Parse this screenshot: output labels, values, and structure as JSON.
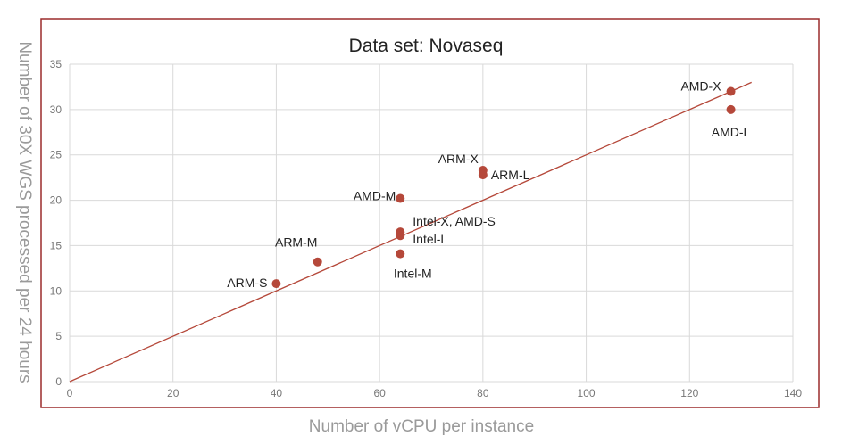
{
  "chart_data": {
    "type": "scatter",
    "title": "Data set: Novaseq",
    "xlabel": "Number of vCPU per instance",
    "ylabel": "Number of 30X WGS processed per 24 hours",
    "xlim": [
      0,
      140
    ],
    "ylim": [
      0,
      35
    ],
    "xticks": [
      0,
      20,
      40,
      60,
      80,
      100,
      120,
      140
    ],
    "yticks": [
      0,
      5,
      10,
      15,
      20,
      25,
      30,
      35
    ],
    "grid": true,
    "legend": "none",
    "colors": {
      "point": "#b5483a",
      "trendline": "#b5483a",
      "frame": "#9b2c2c",
      "grid": "#d9d9d9"
    },
    "points": [
      {
        "label": "ARM-S",
        "x": 40,
        "y": 10.8
      },
      {
        "label": "ARM-M",
        "x": 48,
        "y": 13.2
      },
      {
        "label": "Intel-M",
        "x": 64,
        "y": 14.1
      },
      {
        "label": "Intel-L",
        "x": 64,
        "y": 16.1
      },
      {
        "label": "Intel-X, AMD-S",
        "x": 64,
        "y": 16.5
      },
      {
        "label": "AMD-M",
        "x": 64,
        "y": 20.2
      },
      {
        "label": "ARM-L",
        "x": 80,
        "y": 22.8
      },
      {
        "label": "ARM-X",
        "x": 80,
        "y": 23.3
      },
      {
        "label": "AMD-L",
        "x": 128,
        "y": 30.0
      },
      {
        "label": "AMD-X",
        "x": 128,
        "y": 32.0
      }
    ],
    "trendline": {
      "x": [
        0,
        132
      ],
      "y": [
        0,
        33
      ]
    }
  }
}
